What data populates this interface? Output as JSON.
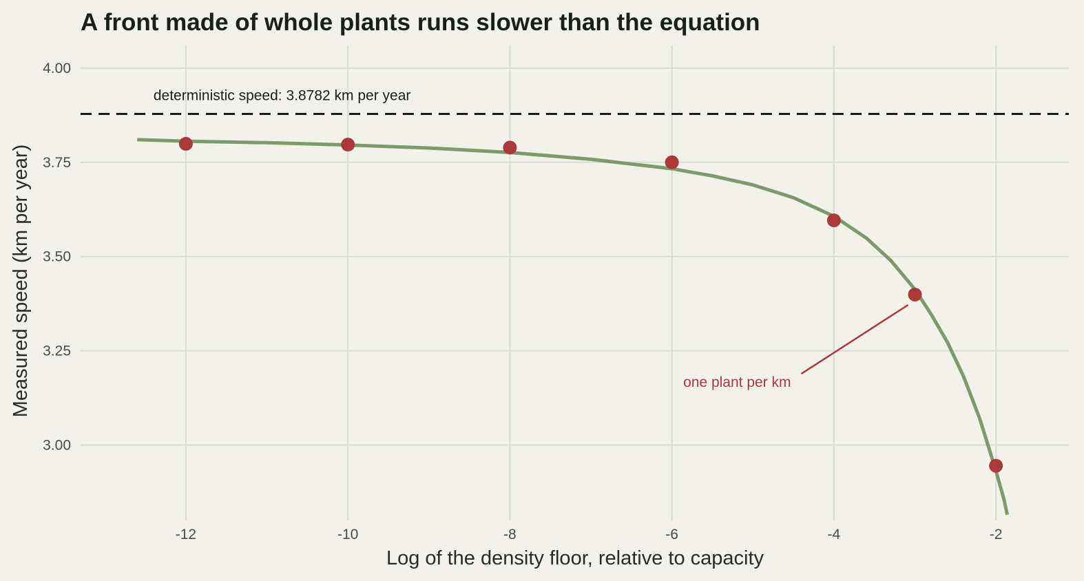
{
  "chart_data": {
    "type": "line",
    "title": "A front made of whole plants runs slower than the equation",
    "xlabel": "Log of the density floor, relative to capacity",
    "ylabel": "Measured speed (km per year)",
    "xlim": [
      -13.3,
      -1.1
    ],
    "ylim": [
      2.8,
      4.06
    ],
    "x_ticks": [
      -12,
      -10,
      -8,
      -6,
      -4,
      -2
    ],
    "x_tick_labels": [
      "-12",
      "-10",
      "-8",
      "-6",
      "-4",
      "-2"
    ],
    "y_ticks": [
      3.0,
      3.25,
      3.5,
      3.75,
      4.0
    ],
    "y_tick_labels": [
      "3.00",
      "3.25",
      "3.50",
      "3.75",
      "4.00"
    ],
    "grid": true,
    "reference_line": {
      "y": 3.8782,
      "label": "deterministic speed: 3.8782 km per year",
      "style": "dashed",
      "color": "#1a1a1a"
    },
    "curve": {
      "color": "#7d9a6a",
      "x": [
        -12.6,
        -12.0,
        -11.0,
        -10.0,
        -9.0,
        -8.0,
        -7.0,
        -6.0,
        -5.5,
        -5.0,
        -4.5,
        -4.0,
        -3.6,
        -3.3,
        -3.0,
        -2.8,
        -2.6,
        -2.4,
        -2.2,
        -2.0,
        -1.9,
        -1.86
      ],
      "y": [
        3.81,
        3.806,
        3.802,
        3.796,
        3.788,
        3.776,
        3.758,
        3.733,
        3.714,
        3.69,
        3.656,
        3.607,
        3.549,
        3.49,
        3.413,
        3.347,
        3.273,
        3.182,
        3.07,
        2.932,
        2.855,
        2.815
      ]
    },
    "points": {
      "color": "#a83a3a",
      "x": [
        -12,
        -10,
        -8,
        -6,
        -4,
        -3,
        -2
      ],
      "y": [
        3.799,
        3.797,
        3.789,
        3.75,
        3.596,
        3.399,
        2.945
      ]
    },
    "annotation": {
      "text": "one plant per km",
      "target": {
        "x": -3,
        "y": 3.399
      },
      "color": "#a83a3a"
    },
    "colors": {
      "background": "#f2f1eb",
      "grid": "#dcdcd6",
      "title": "#17211a"
    }
  }
}
